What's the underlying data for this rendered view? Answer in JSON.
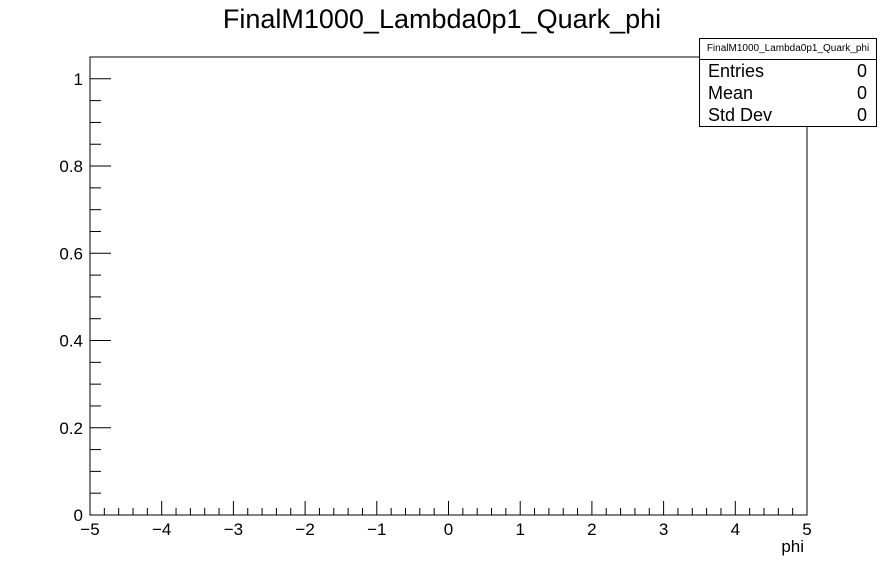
{
  "chart_data": {
    "type": "bar",
    "title": "FinalM1000_Lambda0p1_Quark_phi",
    "xlabel": "phi",
    "ylabel": "",
    "xlim": [
      -5,
      5
    ],
    "ylim": [
      0,
      1.05
    ],
    "x_ticks": [
      "−5",
      "−4",
      "−3",
      "−2",
      "−1",
      "0",
      "1",
      "2",
      "3",
      "4",
      "5"
    ],
    "y_ticks": [
      "0",
      "0.2",
      "0.4",
      "0.6",
      "0.8",
      "1"
    ],
    "series": [
      {
        "values": []
      }
    ],
    "stats": {
      "name": "FinalM1000_Lambda0p1_Quark_phi",
      "rows": [
        {
          "label": "Entries",
          "value": "0"
        },
        {
          "label": "Mean",
          "value": "0"
        },
        {
          "label": "Std Dev",
          "value": "0"
        }
      ]
    },
    "grid": false,
    "legend": "top-right",
    "colors": {
      "frame": "#000000",
      "background": "#ffffff"
    }
  }
}
